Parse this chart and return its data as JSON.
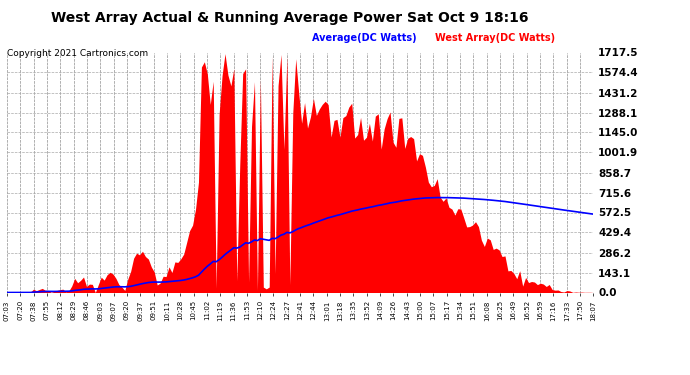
{
  "title": "West Array Actual & Running Average Power Sat Oct 9 18:16",
  "copyright": "Copyright 2021 Cartronics.com",
  "legend_avg": "Average(DC Watts)",
  "legend_west": "West Array(DC Watts)",
  "y_ticks": [
    0.0,
    143.1,
    286.2,
    429.4,
    572.5,
    715.6,
    858.7,
    1001.9,
    1145.0,
    1288.1,
    1431.2,
    1574.4,
    1717.5
  ],
  "ymax": 1717.5,
  "ymin": 0.0,
  "background_color": "#ffffff",
  "grid_color": "#aaaaaa",
  "fill_color": "#ff0000",
  "avg_line_color": "#0000ff",
  "title_color": "#000000",
  "copyright_color": "#000000",
  "legend_avg_color": "#0000ff",
  "legend_west_color": "#ff0000",
  "x_tick_labels": [
    "07:03",
    "07:20",
    "07:38",
    "07:55",
    "08:12",
    "08:29",
    "08:46",
    "09:03",
    "09:07",
    "09:20",
    "09:37",
    "09:51",
    "10:11",
    "10:28",
    "10:45",
    "11:02",
    "11:19",
    "11:36",
    "11:53",
    "12:10",
    "12:24",
    "12:27",
    "12:41",
    "12:44",
    "13:01",
    "13:18",
    "13:35",
    "13:52",
    "14:09",
    "14:26",
    "14:43",
    "15:00",
    "15:07",
    "15:17",
    "15:34",
    "15:51",
    "16:08",
    "16:25",
    "16:49",
    "16:52",
    "16:59",
    "17:16",
    "17:33",
    "17:50",
    "18:07"
  ],
  "num_points": 200
}
